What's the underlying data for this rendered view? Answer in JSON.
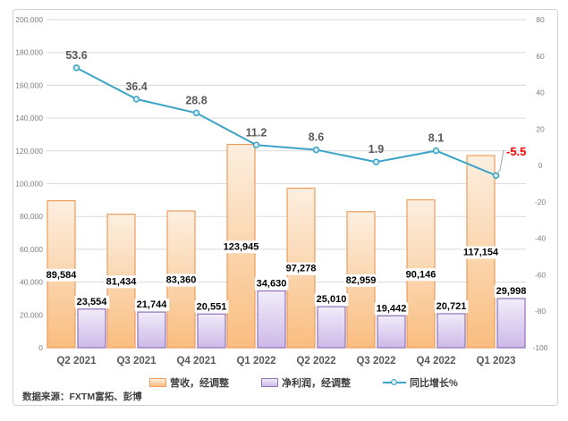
{
  "frame": {
    "source_note": "数据来源：FXTM富拓、彭博"
  },
  "legend": {
    "revenue": "营收，经调整",
    "profit": "净利润，经调整",
    "growth": "同比增长%"
  },
  "chart_data": {
    "type": "combo-bar-line",
    "title": "",
    "categories": [
      "Q2 2021",
      "Q3 2021",
      "Q4 2021",
      "Q1 2022",
      "Q2 2022",
      "Q3 2022",
      "Q4 2022",
      "Q1 2023"
    ],
    "series": [
      {
        "name": "营收，经调整",
        "type": "bar",
        "axis": "left",
        "values": [
          89584,
          81434,
          83360,
          123945,
          97278,
          82959,
          90146,
          117154
        ]
      },
      {
        "name": "净利润，经调整",
        "type": "bar",
        "axis": "left",
        "values": [
          23554,
          21744,
          20551,
          34630,
          25010,
          19442,
          20721,
          29998
        ]
      },
      {
        "name": "同比增长%",
        "type": "line",
        "axis": "right",
        "values": [
          53.6,
          36.4,
          28.8,
          11.2,
          8.6,
          1.9,
          8.1,
          -5.5
        ]
      }
    ],
    "left_axis": {
      "min": 0,
      "max": 200000,
      "step": 20000
    },
    "right_axis": {
      "min": -100,
      "max": 80,
      "step": 20
    },
    "grid": true,
    "legend_position": "bottom",
    "highlight_last_growth": {
      "label": "-5.5",
      "color": "#ff0000"
    }
  },
  "colors": {
    "orange_border": "#ec9c5d",
    "orange_light": "#fcefe0",
    "orange_dark": "#fabd7f",
    "purple_border": "#8f72b8",
    "purple_light": "#f1ecfa",
    "purple_dark": "#cdb9e8",
    "line": "#3ba4c6",
    "marker_fill": "#d6ebf3",
    "grid": "#dadada",
    "axis_text": "#7f7f7f",
    "bar_label_text": "#000000",
    "growth_label_text": "#595959",
    "category_text": "#595959",
    "highlight_red": "#ff0000",
    "leader_line": "#a6a6a6"
  }
}
